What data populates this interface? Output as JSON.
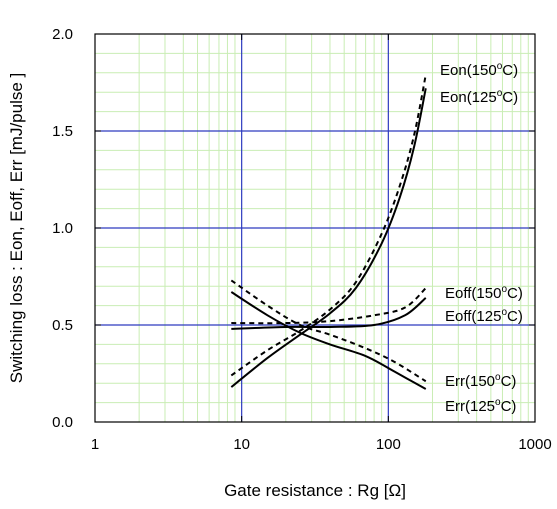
{
  "chart_data": {
    "type": "line",
    "xlabel": "Gate resistance : Rg [Ω]",
    "ylabel": "Switching loss  : Eon, Eoff, Err  [mJ/pulse ]",
    "x_scale": "log",
    "xlim": [
      1,
      1000
    ],
    "ylim": [
      0.0,
      2.0
    ],
    "x_ticks": [
      1,
      10,
      100,
      1000
    ],
    "x_tick_labels": [
      "1",
      "10",
      "100",
      "1000"
    ],
    "y_ticks": [
      0.0,
      0.5,
      1.0,
      1.5,
      2.0
    ],
    "y_tick_labels": [
      "0.0",
      "0.5",
      "1.0",
      "1.5",
      "2.0"
    ],
    "grid": true,
    "colors": {
      "major_grid": "#2d3bbf",
      "minor_grid": "#c9edb4",
      "curve": "#000000"
    },
    "series": [
      {
        "name": "Eon(150°C)",
        "dash": "dashed",
        "x": [
          8.5,
          15,
          25,
          40,
          60,
          90,
          120,
          150,
          180
        ],
        "y": [
          0.24,
          0.37,
          0.47,
          0.58,
          0.72,
          0.97,
          1.22,
          1.48,
          1.79
        ]
      },
      {
        "name": "Eon(125°C)",
        "dash": "solid",
        "x": [
          8.5,
          15,
          25,
          40,
          60,
          90,
          120,
          150,
          180
        ],
        "y": [
          0.18,
          0.33,
          0.45,
          0.56,
          0.69,
          0.92,
          1.16,
          1.42,
          1.72
        ]
      },
      {
        "name": "Eoff(150°C)",
        "dash": "dashed",
        "x": [
          8.5,
          20,
          40,
          80,
          130,
          180
        ],
        "y": [
          0.51,
          0.51,
          0.52,
          0.55,
          0.59,
          0.69
        ]
      },
      {
        "name": "Eoff(125°C)",
        "dash": "solid",
        "x": [
          8.5,
          20,
          40,
          80,
          130,
          180
        ],
        "y": [
          0.48,
          0.49,
          0.49,
          0.5,
          0.55,
          0.64
        ]
      },
      {
        "name": "Err(150°C)",
        "dash": "dashed",
        "x": [
          8.5,
          15,
          25,
          40,
          70,
          110,
          180
        ],
        "y": [
          0.73,
          0.6,
          0.5,
          0.45,
          0.38,
          0.31,
          0.21
        ]
      },
      {
        "name": "Err(125°C)",
        "dash": "solid",
        "x": [
          8.5,
          15,
          25,
          40,
          70,
          110,
          180
        ],
        "y": [
          0.67,
          0.55,
          0.46,
          0.4,
          0.34,
          0.26,
          0.17
        ]
      }
    ],
    "annotations": [
      {
        "base": "Eon(150",
        "sup": "o",
        "tail": "C)"
      },
      {
        "base": "Eon(125",
        "sup": "o",
        "tail": "C)"
      },
      {
        "base": "Eoff(150",
        "sup": "o",
        "tail": "C)"
      },
      {
        "base": "Eoff(125",
        "sup": "o",
        "tail": "C)"
      },
      {
        "base": "Err(150",
        "sup": "o",
        "tail": "C)"
      },
      {
        "base": "Err(125",
        "sup": "o",
        "tail": "C)"
      }
    ]
  }
}
